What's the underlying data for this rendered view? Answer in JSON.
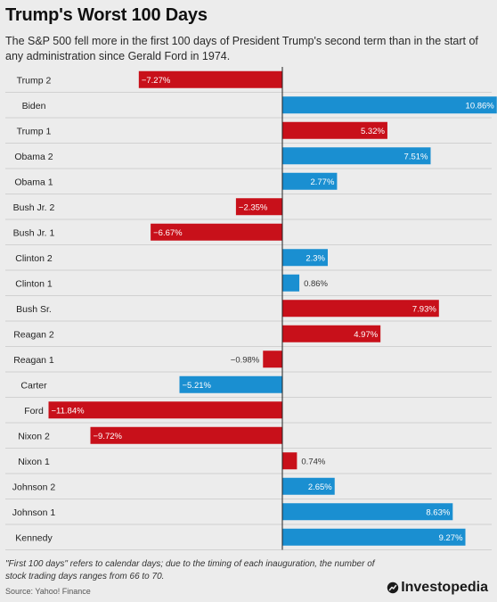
{
  "header": {
    "title": "Trump's Worst 100 Days",
    "subtitle": "The S&P 500 fell more in the first 100 days of President Trump's second term than in the start of any administration since Gerald Ford in 1974."
  },
  "colors": {
    "negative": "#c8101a",
    "positive": "#1a8fd1",
    "row_divider": "#c9c9c9",
    "axis": "#222222"
  },
  "chart_data": {
    "type": "bar",
    "orientation": "horizontal",
    "title": "Trump's Worst 100 Days",
    "categories": [
      "Trump 2",
      "Biden",
      "Trump 1",
      "Obama 2",
      "Obama 1",
      "Bush Jr. 2",
      "Bush Jr. 1",
      "Clinton 2",
      "Clinton 1",
      "Bush Sr.",
      "Reagan 2",
      "Reagan 1",
      "Carter",
      "Ford",
      "Nixon 2",
      "Nixon 1",
      "Johnson 2",
      "Johnson 1",
      "Kennedy"
    ],
    "values": [
      -7.27,
      10.86,
      5.32,
      7.51,
      2.77,
      -2.35,
      -6.67,
      2.3,
      0.86,
      7.93,
      4.97,
      -0.98,
      -5.21,
      -11.84,
      -9.72,
      0.74,
      2.65,
      8.63,
      9.27
    ],
    "labels": [
      "−7.27%",
      "10.86%",
      "5.32%",
      "7.51%",
      "2.77%",
      "−2.35%",
      "−6.67%",
      "2.3%",
      "0.86%",
      "7.93%",
      "4.97%",
      "−0.98%",
      "−5.21%",
      "−11.84%",
      "−9.72%",
      "0.74%",
      "2.65%",
      "8.63%",
      "9.27%"
    ],
    "bar_colors": [
      "negative",
      "positive",
      "negative",
      "positive",
      "positive",
      "negative",
      "negative",
      "positive",
      "positive",
      "negative",
      "negative",
      "negative",
      "positive",
      "negative",
      "negative",
      "negative",
      "positive",
      "positive",
      "positive"
    ],
    "xlim": [
      -11.84,
      10.86
    ],
    "grid": false,
    "legend": "none"
  },
  "footer": {
    "footnote": "\"First 100 days\" refers to calendar days; due to the timing of each inauguration, the number of stock trading days ranges from 66 to 70.",
    "source": "Source: Yahoo! Finance",
    "brand": "Investopedia",
    "brand_icon": "investopedia-logo-icon"
  }
}
